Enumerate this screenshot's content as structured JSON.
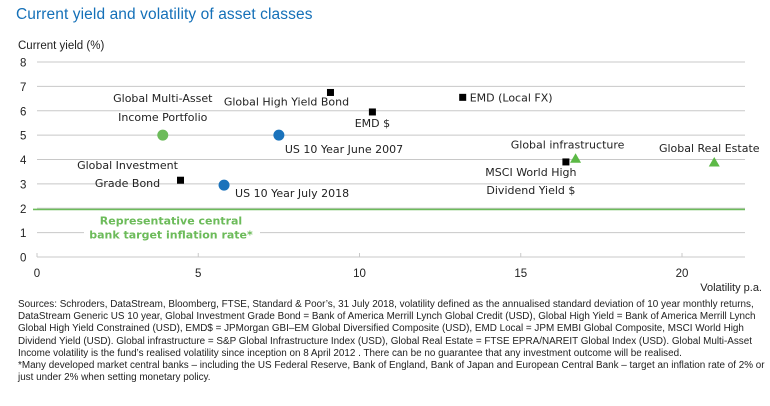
{
  "chart_data": {
    "type": "scatter",
    "title": "Current yield and volatility of asset classes",
    "ylabel": "Current yield (%)",
    "xlabel": "Volatility p.a.",
    "xlim": [
      0,
      22
    ],
    "ylim": [
      0,
      8
    ],
    "xticks": [
      0,
      5,
      10,
      15,
      20
    ],
    "yticks": [
      0,
      1,
      2,
      3,
      4,
      5,
      6,
      7,
      8
    ],
    "grid": "horizontal",
    "points": [
      {
        "label_lines": [
          "Global Multi-Asset",
          "Income Portfolio"
        ],
        "x": 3.9,
        "y": 5.0,
        "marker": "circle",
        "color": "#6cbb5a"
      },
      {
        "label_lines": [
          "US 10 Year June 2007"
        ],
        "x": 7.5,
        "y": 5.0,
        "marker": "circle",
        "color": "#1a72bb"
      },
      {
        "label_lines": [
          "US 10 Year July 2018"
        ],
        "x": 5.8,
        "y": 2.95,
        "marker": "circle",
        "color": "#1a72bb"
      },
      {
        "label_lines": [
          "Global Investment",
          "Grade Bond"
        ],
        "x": 4.45,
        "y": 3.15,
        "marker": "square",
        "color": "#000000"
      },
      {
        "label_lines": [
          "Global High Yield Bond"
        ],
        "x": 9.1,
        "y": 6.75,
        "marker": "square",
        "color": "#000000"
      },
      {
        "label_lines": [
          "EMD $"
        ],
        "x": 10.4,
        "y": 5.95,
        "marker": "square",
        "color": "#000000"
      },
      {
        "label_lines": [
          "EMD (Local FX)"
        ],
        "x": 13.2,
        "y": 6.55,
        "marker": "square",
        "color": "#000000"
      },
      {
        "label_lines": [
          "MSCI World High",
          "Dividend Yield $"
        ],
        "x": 16.4,
        "y": 3.9,
        "marker": "square",
        "color": "#000000"
      },
      {
        "label_lines": [
          "Global infrastructure"
        ],
        "x": 16.7,
        "y": 4.05,
        "marker": "triangle",
        "color": "#5cb946"
      },
      {
        "label_lines": [
          "Global Real Estate"
        ],
        "x": 21.0,
        "y": 3.9,
        "marker": "triangle",
        "color": "#5cb946"
      }
    ],
    "reference_line": {
      "y": 1.95,
      "color": "#6cbb5a",
      "label_lines": [
        "Representative central",
        "bank target inflation rate*"
      ]
    }
  },
  "notes": {
    "sources": "Sources: Schroders, DataStream, Bloomberg, FTSE, Standard & Poor’s, 31 July 2018, volatility defined as the annualised standard deviation of 10 year monthly returns, DataStream Generic US 10 year, Global Investment Grade Bond = Bank of America Merrill Lynch Global Credit (USD), Global High Yield = Bank of America Merrill Lynch Global High Yield Constrained (USD), EMD$ = JPMorgan GBI–EM Global Diversified Composite (USD), EMD Local = JPM EMBI Global Composite, MSCI World High Dividend Yield (USD). Global infrastructure = S&P Global Infrastructure Index (USD),  Global Real Estate = FTSE EPRA/NAREIT Global Index (USD). Global Multi-Asset Income volatility is the fund’s realised volatility since inception on  8 April 2012 . There can be no guarantee that any investment outcome will be realised.",
    "footnote": "*Many developed market central banks – including the US Federal Reserve, Bank of England, Bank of Japan and European Central Bank – target an inflation rate of 2% or just under 2% when setting monetary policy."
  }
}
